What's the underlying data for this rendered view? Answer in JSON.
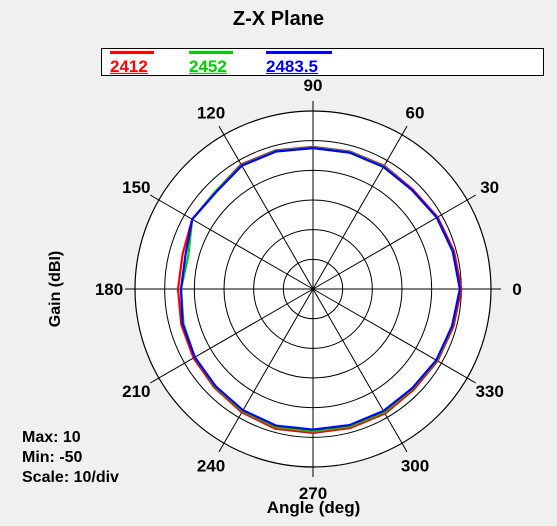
{
  "chart_data": {
    "type": "polar-line",
    "title": "Z-X Plane",
    "xlabel": "Angle  (deg)",
    "ylabel": "Gain  (dBI)",
    "angle_ticks": [
      0,
      30,
      60,
      90,
      120,
      150,
      180,
      210,
      240,
      270,
      300,
      330
    ],
    "radial_range": [
      -50,
      10
    ],
    "radial_step": 10,
    "stats": {
      "max": "Max: 10",
      "min": "Min: -50",
      "scale": "Scale: 10/div"
    },
    "angles": [
      0,
      15,
      30,
      45,
      60,
      75,
      90,
      105,
      120,
      135,
      150,
      165,
      180,
      195,
      210,
      225,
      240,
      255,
      270,
      285,
      300,
      315,
      330,
      345
    ],
    "series": [
      {
        "name": "2412",
        "color": "#ff0000",
        "values": [
          0,
          -0.8,
          -1.5,
          -2.5,
          -2.0,
          -2.0,
          -2.1,
          -1.6,
          -1.5,
          -3.5,
          -3.0,
          -4.5,
          -4.5,
          -4.0,
          -3.5,
          -3.0,
          -2.0,
          -1.2,
          -1.5,
          -1.5,
          -1.5,
          -2.0,
          -1.5,
          -1.0
        ]
      },
      {
        "name": "2452",
        "color": "#00cc00",
        "values": [
          -0.5,
          -1.2,
          -1.8,
          -2.8,
          -2.3,
          -2.2,
          -2.3,
          -1.8,
          -1.8,
          -3.5,
          -3.0,
          -6.5,
          -5.5,
          -4.8,
          -4.0,
          -3.4,
          -2.5,
          -1.8,
          -2.0,
          -2.0,
          -2.0,
          -2.5,
          -1.8,
          -1.4
        ]
      },
      {
        "name": "2483.5",
        "color": "#0000ff",
        "values": [
          -0.5,
          -1.2,
          -1.8,
          -2.8,
          -2.5,
          -2.4,
          -2.5,
          -2.0,
          -2.0,
          -3.8,
          -3.0,
          -5.5,
          -5.5,
          -4.5,
          -4.0,
          -3.6,
          -2.8,
          -2.3,
          -2.6,
          -2.5,
          -2.5,
          -2.7,
          -2.0,
          -1.5
        ]
      }
    ]
  }
}
